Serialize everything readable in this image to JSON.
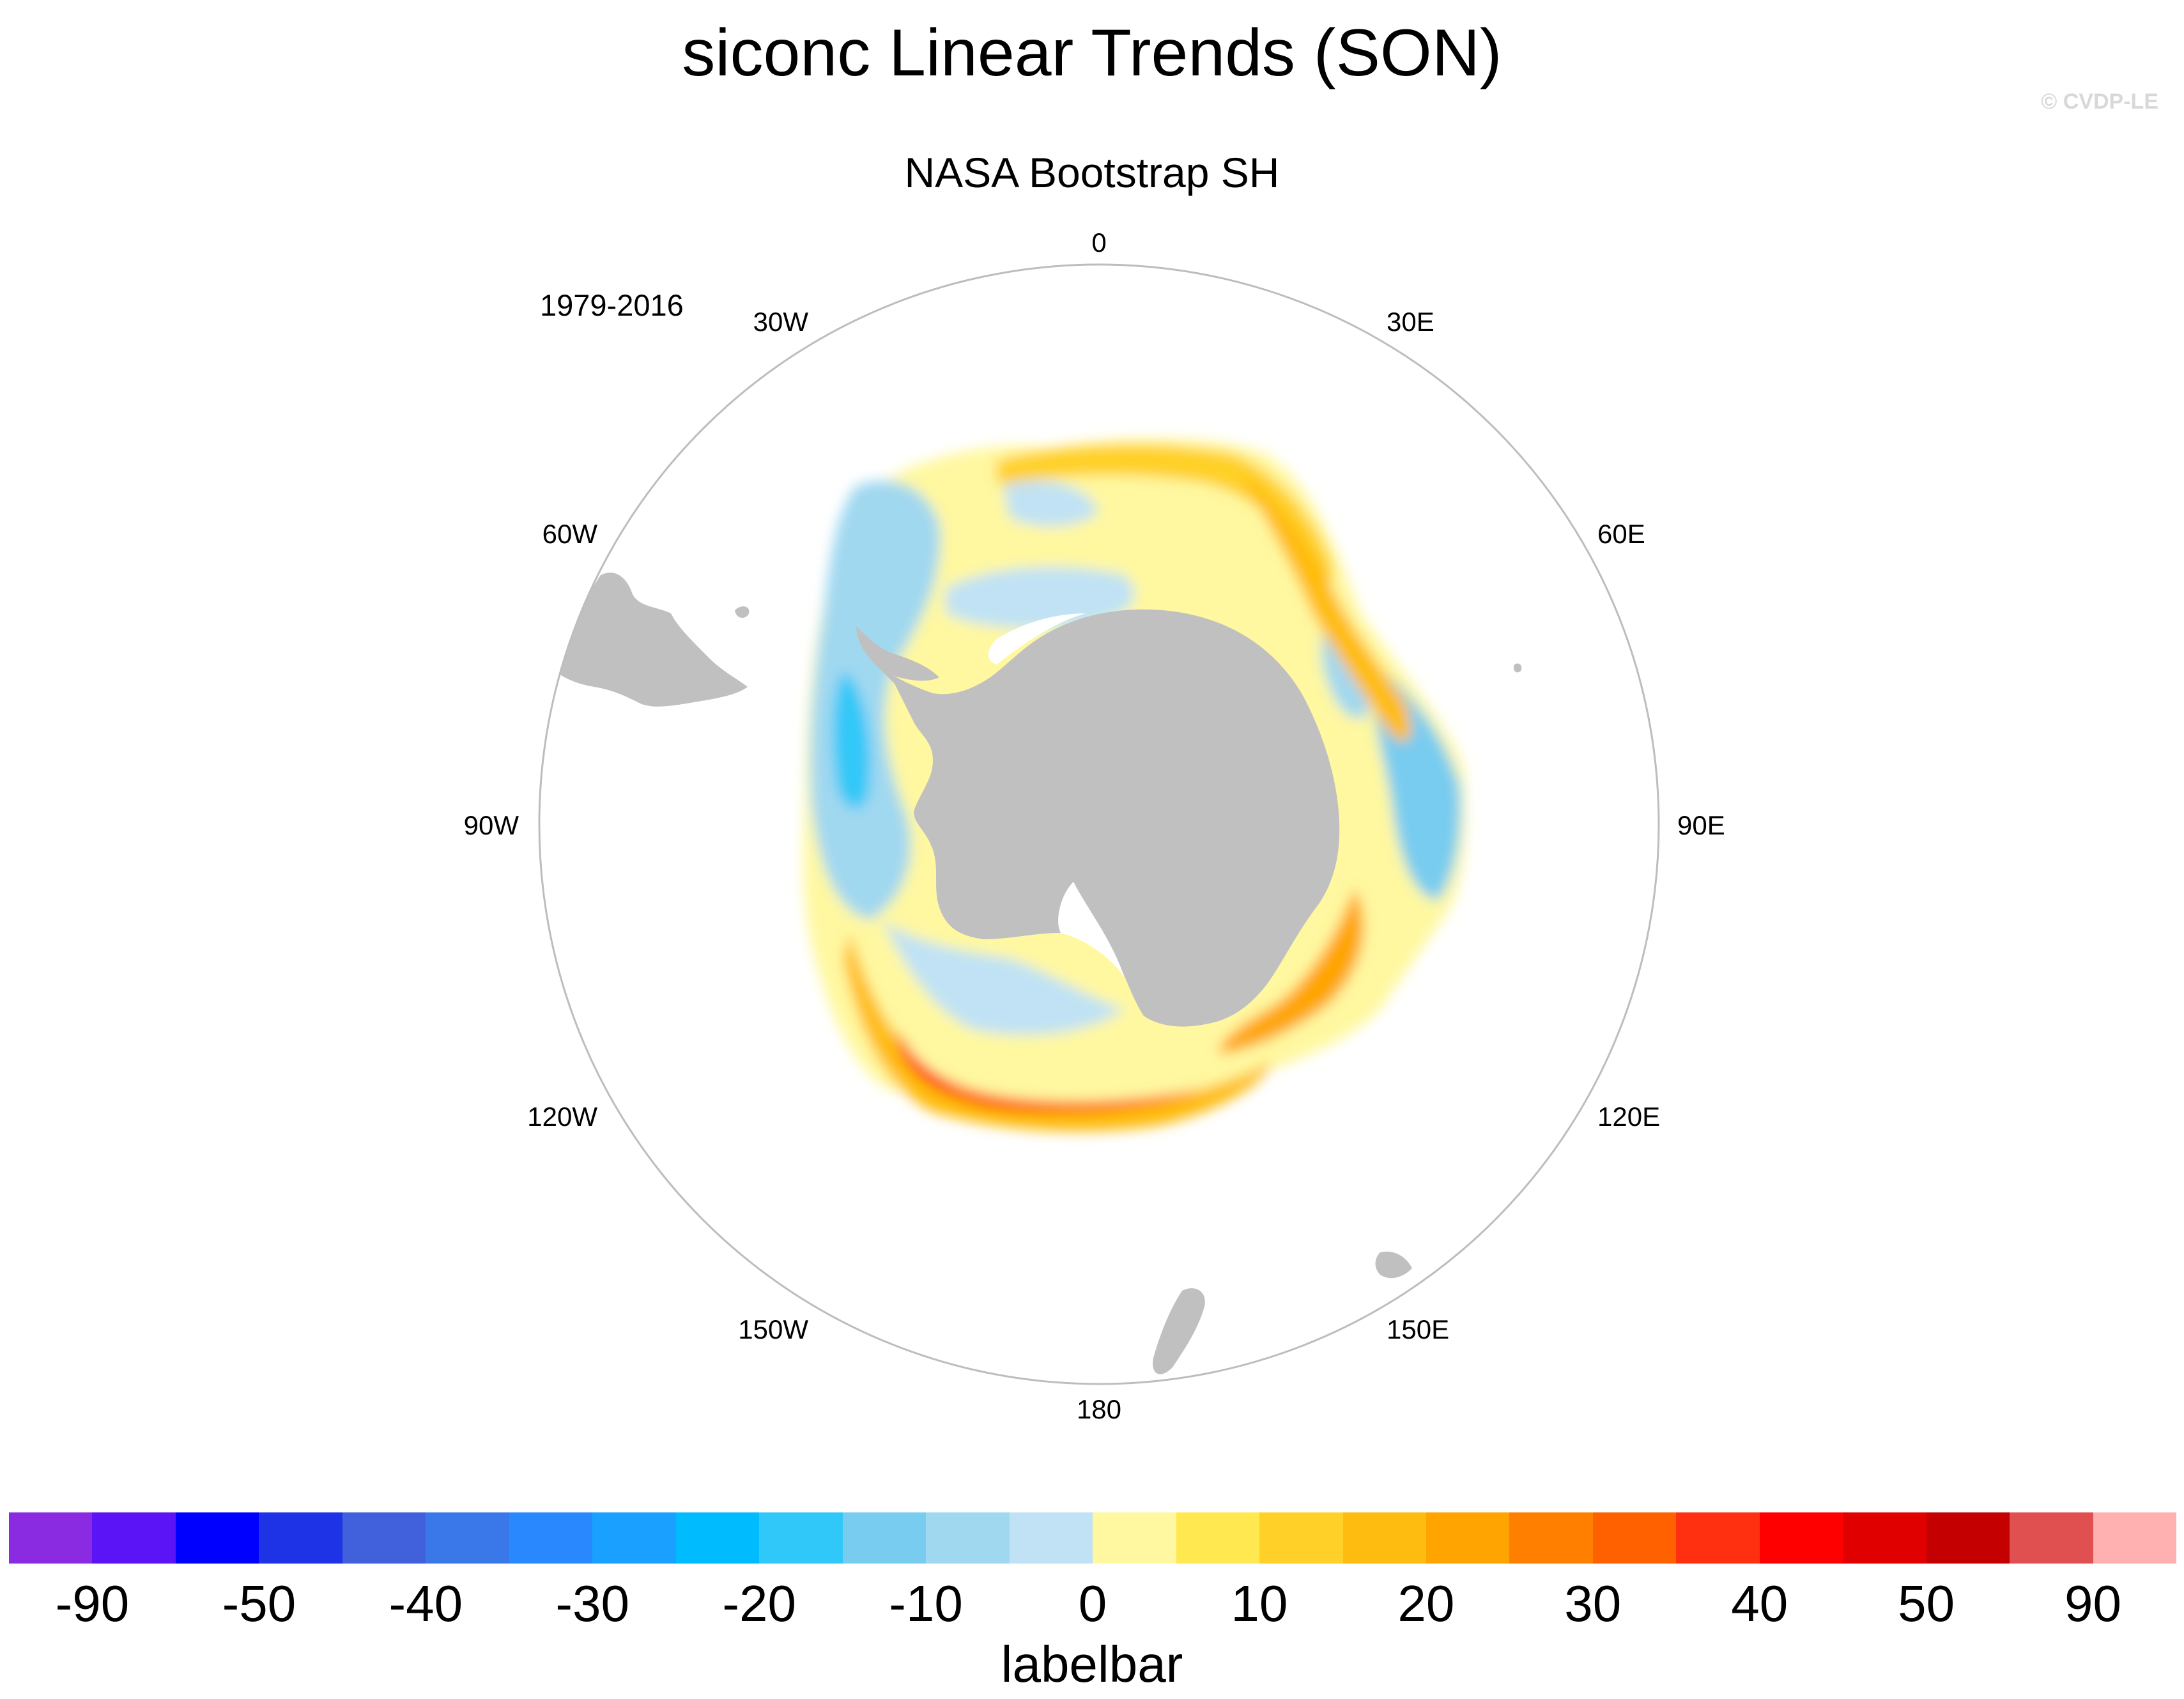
{
  "title": "siconc Linear Trends (SON)",
  "watermark": "© CVDP-LE",
  "subtitle": "NASA Bootstrap SH",
  "period": "1979-2016",
  "map": {
    "projection": "south-polar-stereographic",
    "longitude_labels": [
      "0",
      "30E",
      "60E",
      "90E",
      "120E",
      "150E",
      "180",
      "150W",
      "120W",
      "90W",
      "60W",
      "30W"
    ],
    "land_color": "#c0c0c0",
    "frame_color": "#bdbdbd"
  },
  "labelbar": {
    "title": "labelbar",
    "colors": [
      "#8a2be2",
      "#5a14f5",
      "#0000ff",
      "#1e32e6",
      "#4060dc",
      "#3a78ea",
      "#2a88ff",
      "#1aa0ff",
      "#00bcff",
      "#30c8f8",
      "#78ccf0",
      "#a0d8f0",
      "#c0e2f4",
      "#fff8a0",
      "#ffe850",
      "#ffd028",
      "#ffbc10",
      "#ffa400",
      "#ff8000",
      "#ff6000",
      "#ff3010",
      "#ff0000",
      "#e00000",
      "#c40000",
      "#e05050",
      "#ffb0b0"
    ],
    "tick_labels": [
      "-90",
      "-50",
      "-40",
      "-30",
      "-20",
      "-10",
      "0",
      "10",
      "20",
      "30",
      "40",
      "50",
      "90"
    ]
  }
}
